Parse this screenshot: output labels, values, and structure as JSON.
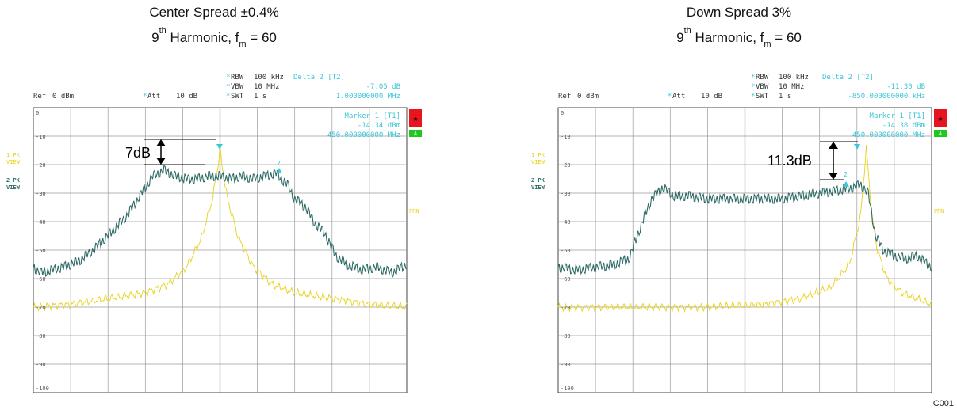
{
  "colors": {
    "trace_modulated": "#2e6b66",
    "trace_reference": "#e8d21a",
    "info_cyan": "#3ec6d6",
    "trace_label_yellow": "#e8d21a",
    "trace_label_teal": "#2e6b66",
    "grid": "#8a8a8a",
    "badge_red": "#e8141e",
    "badge_green": "#1ec81e"
  },
  "icons": {
    "star": "★"
  },
  "panels": [
    {
      "title1": "Center Spread ±0.4%",
      "title2_pre": "9",
      "title2_sup": "th",
      "title2_mid": " Harmonic, f",
      "title2_sub": "m",
      "title2_post": " = 60",
      "info": {
        "rbw_label": "RBW",
        "rbw_value": "100 kHz",
        "vbw_label": "VBW",
        "vbw_value": "10 MHz",
        "swt_label": "SWT",
        "swt_value": "1 s",
        "ref_label": "Ref",
        "ref_value": "0 dBm",
        "att_label": "Att",
        "att_value": "10 dB",
        "asterisk": "*",
        "delta_title": "Delta 2 [T2]",
        "delta_db": "-7.05 dB",
        "delta_freq": "1.000000000 MHz",
        "marker_title": "Marker 1 [T1]",
        "marker_dbm": "-14.34 dBm",
        "marker_freq": "450.000000000 MHz"
      },
      "trace1_label_a": "1 PK",
      "trace1_label_b": "VIEW",
      "trace2_label_a": "2 PK",
      "trace2_label_b": "VIEW",
      "badge_a": "A",
      "prn": "PRN",
      "annotation": "7dB",
      "marker2_label": "2"
    },
    {
      "title1": "Down Spread 3%",
      "title2_pre": "9",
      "title2_sup": "th",
      "title2_mid": " Harmonic, f",
      "title2_sub": "m",
      "title2_post": " = 60",
      "info": {
        "rbw_label": "RBW",
        "rbw_value": "100 kHz",
        "vbw_label": "VBW",
        "vbw_value": "10 MHz",
        "swt_label": "SWT",
        "swt_value": "1 s",
        "ref_label": "Ref",
        "ref_value": "0 dBm",
        "att_label": "Att",
        "att_value": "10 dB",
        "asterisk": "*",
        "delta_title": "Delta 2 [T2]",
        "delta_db": "-11.30 dB",
        "delta_freq": "-850.000000000 kHz",
        "marker_title": "Marker 1 [T1]",
        "marker_dbm": "-14.38 dBm",
        "marker_freq": "450.000000000 MHz"
      },
      "trace1_label_a": "1 PK",
      "trace1_label_b": "VIEW",
      "trace2_label_a": "2 PK",
      "trace2_label_b": "VIEW",
      "badge_a": "A",
      "prn": "PRN",
      "annotation": "11.3dB",
      "marker2_label": "2"
    }
  ],
  "corner_tag": "C001",
  "chart_data": [
    {
      "type": "line",
      "title": "Center Spread ±0.4%",
      "ylim": [
        -100,
        0
      ],
      "xlim": [
        0,
        10
      ],
      "y_tick_labels": [
        "0",
        "-10",
        "-20",
        "-30",
        "-40",
        "-50",
        "-60",
        "-70",
        "-80",
        "-90",
        "-100"
      ],
      "grid": true,
      "series": [
        {
          "color": "#2e6b66",
          "x": [
            0,
            0.2,
            0.5,
            0.8,
            1.2,
            1.6,
            2.0,
            2.5,
            2.9,
            3.2,
            3.5,
            3.8,
            4.1,
            4.4,
            4.7,
            5.0,
            5.3,
            5.6,
            5.9,
            6.2,
            6.5,
            6.8,
            7.0,
            7.3,
            7.5,
            7.8,
            8.1,
            8.4,
            8.8,
            9.2,
            9.6,
            10
          ],
          "y": [
            -56,
            -58,
            -57,
            -56,
            -54,
            -50,
            -45,
            -38,
            -30,
            -24,
            -22,
            -24,
            -25,
            -25,
            -24,
            -24,
            -25,
            -24,
            -25,
            -24,
            -23,
            -27,
            -32,
            -35,
            -40,
            -44,
            -52,
            -55,
            -57,
            -56,
            -58,
            -55
          ]
        },
        {
          "color": "#e8d21a",
          "x": [
            0,
            1,
            2,
            3,
            3.6,
            4.1,
            4.5,
            4.8,
            4.95,
            5.0,
            5.05,
            5.2,
            5.5,
            5.9,
            6.4,
            7,
            8,
            9,
            10
          ],
          "y": [
            -70,
            -69,
            -67,
            -65,
            -62,
            -56,
            -46,
            -32,
            -20,
            -14,
            -20,
            -32,
            -46,
            -56,
            -62,
            -65,
            -67,
            -69,
            -70
          ]
        }
      ]
    },
    {
      "type": "line",
      "title": "Down Spread 3%",
      "ylim": [
        -100,
        0
      ],
      "xlim": [
        0,
        10
      ],
      "y_tick_labels": [
        "0",
        "-10",
        "-20",
        "-30",
        "-40",
        "-50",
        "-60",
        "-70",
        "-80",
        "-90",
        "-100"
      ],
      "grid": true,
      "series": [
        {
          "color": "#2e6b66",
          "x": [
            0,
            0.5,
            1.0,
            1.5,
            1.9,
            2.2,
            2.5,
            2.8,
            3.1,
            3.5,
            4.0,
            5.0,
            6.0,
            6.5,
            7.0,
            7.5,
            7.9,
            8.1,
            8.3,
            8.5,
            8.7,
            9.0,
            9.3,
            9.6,
            10
          ],
          "y": [
            -56,
            -57,
            -56,
            -55,
            -53,
            -42,
            -32,
            -28,
            -31,
            -31,
            -32,
            -32,
            -32,
            -31,
            -30,
            -29,
            -28,
            -27,
            -30,
            -45,
            -50,
            -52,
            -53,
            -52,
            -56
          ]
        },
        {
          "color": "#e8d21a",
          "x": [
            0,
            2,
            4,
            5.5,
            6.5,
            7.3,
            7.8,
            8.1,
            8.25,
            8.4,
            8.55,
            8.8,
            9.2,
            9.6,
            10
          ],
          "y": [
            -70,
            -70,
            -70,
            -69,
            -67,
            -63,
            -55,
            -38,
            -14,
            -38,
            -50,
            -60,
            -65,
            -67,
            -69
          ]
        }
      ]
    }
  ]
}
